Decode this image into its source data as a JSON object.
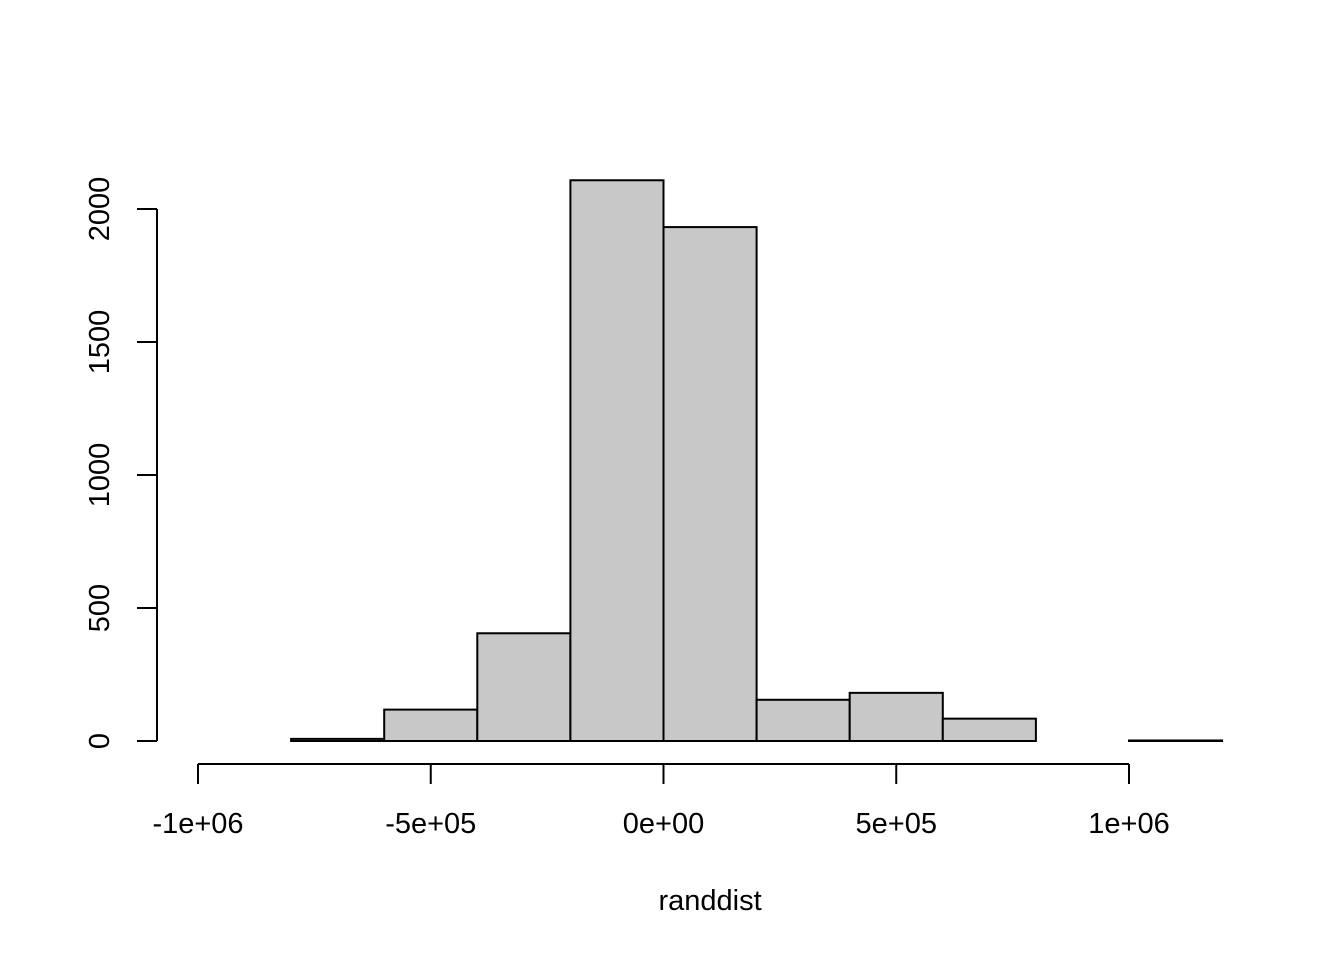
{
  "chart_data": {
    "type": "bar",
    "title": "",
    "xlabel": "randdist",
    "ylabel": "",
    "bin_edges": [
      -1000000,
      -800000,
      -600000,
      -400000,
      -200000,
      0,
      200000,
      400000,
      600000,
      800000,
      1000000,
      1200000
    ],
    "counts": [
      0,
      8,
      118,
      405,
      2108,
      1932,
      155,
      181,
      84,
      0,
      2
    ],
    "xlim": [
      -1000000,
      1200000
    ],
    "ylim": [
      0,
      2108
    ],
    "x_ticks": [
      {
        "value": -1000000,
        "label": "-1e+06"
      },
      {
        "value": -500000,
        "label": "-5e+05"
      },
      {
        "value": 0,
        "label": "0e+00"
      },
      {
        "value": 500000,
        "label": "5e+05"
      },
      {
        "value": 1000000,
        "label": "1e+06"
      }
    ],
    "y_ticks": [
      {
        "value": 0,
        "label": "0"
      },
      {
        "value": 500,
        "label": "500"
      },
      {
        "value": 1000,
        "label": "1000"
      },
      {
        "value": 1500,
        "label": "1500"
      },
      {
        "value": 2000,
        "label": "2000"
      }
    ],
    "bar_color": "#c8c8c8",
    "grid": false,
    "legend": "none"
  }
}
